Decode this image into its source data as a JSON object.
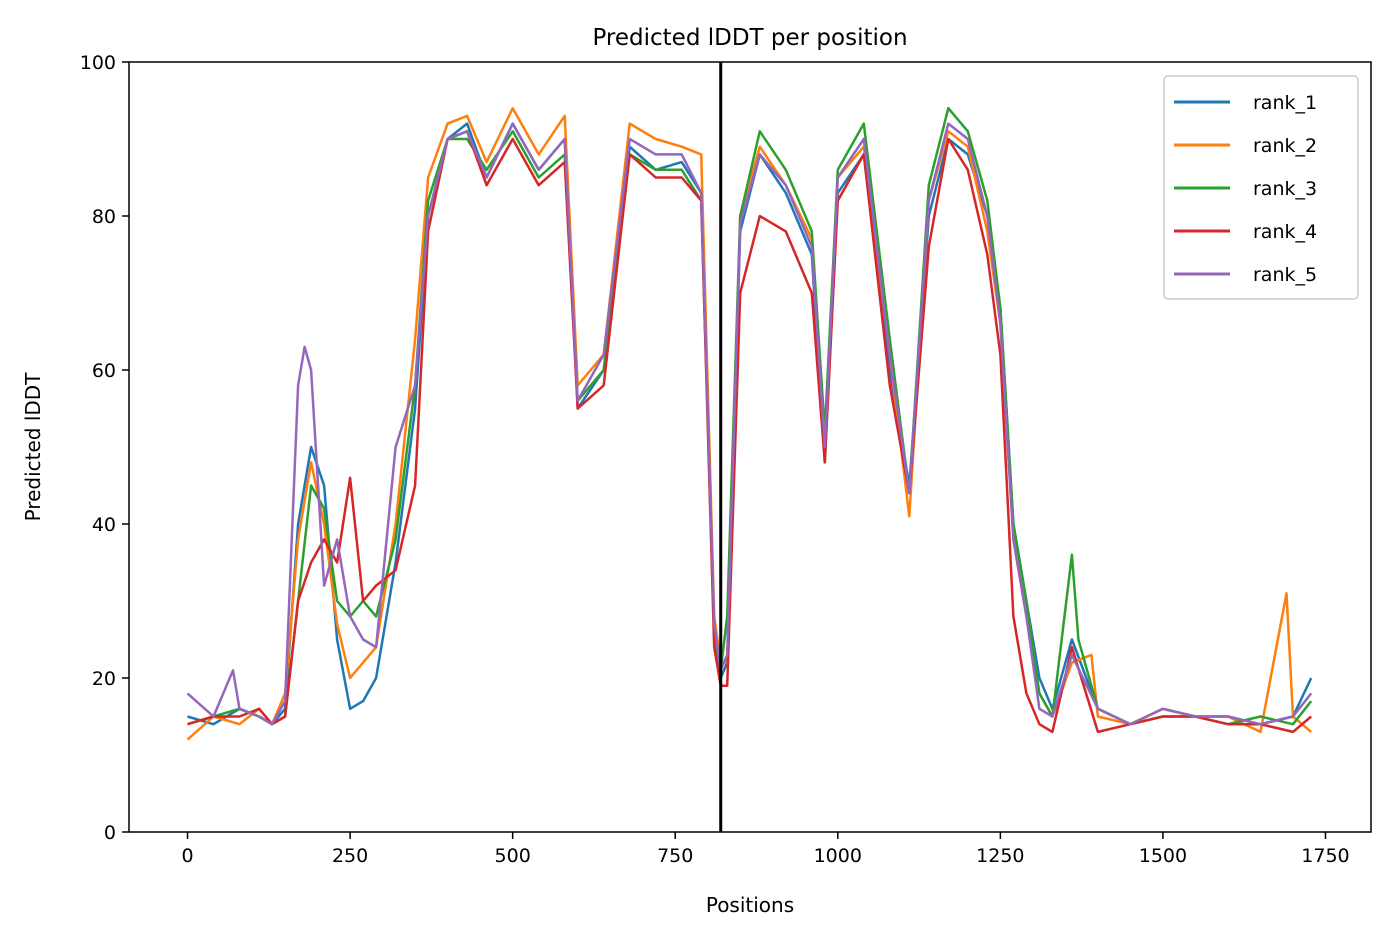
{
  "chart_data": {
    "type": "line",
    "title": "Predicted lDDT per position",
    "xlabel": "Positions",
    "ylabel": "Predicted lDDT",
    "xlim": [
      -90,
      1820
    ],
    "ylim": [
      0,
      100
    ],
    "xticks": [
      0,
      250,
      500,
      750,
      1000,
      1250,
      1500,
      1750
    ],
    "yticks": [
      0,
      20,
      40,
      60,
      80,
      100
    ],
    "grid": false,
    "legend_position": "top-right",
    "vline": {
      "x": 820,
      "color": "#000000"
    },
    "series": [
      {
        "name": "rank_1",
        "color": "#1f77b4",
        "x": [
          0,
          40,
          80,
          110,
          130,
          150,
          170,
          190,
          210,
          230,
          250,
          270,
          290,
          320,
          350,
          370,
          400,
          430,
          460,
          500,
          540,
          580,
          600,
          640,
          680,
          720,
          760,
          790,
          810,
          820,
          830,
          850,
          880,
          920,
          960,
          980,
          1000,
          1040,
          1080,
          1110,
          1140,
          1170,
          1200,
          1230,
          1250,
          1270,
          1290,
          1310,
          1330,
          1360,
          1400,
          1450,
          1500,
          1550,
          1600,
          1650,
          1700,
          1728
        ],
        "y": [
          15,
          14,
          16,
          15,
          14,
          16,
          40,
          50,
          45,
          25,
          16,
          17,
          20,
          35,
          55,
          80,
          90,
          92,
          85,
          92,
          86,
          90,
          55,
          60,
          89,
          86,
          87,
          83,
          25,
          20,
          22,
          78,
          88,
          83,
          75,
          48,
          83,
          88,
          60,
          45,
          80,
          90,
          88,
          80,
          68,
          40,
          30,
          20,
          16,
          25,
          16,
          14,
          16,
          15,
          15,
          14,
          15,
          20
        ]
      },
      {
        "name": "rank_2",
        "color": "#ff7f0e",
        "x": [
          0,
          40,
          80,
          110,
          130,
          150,
          170,
          190,
          210,
          230,
          250,
          270,
          290,
          320,
          350,
          370,
          400,
          430,
          460,
          500,
          540,
          580,
          600,
          640,
          680,
          720,
          760,
          790,
          810,
          820,
          830,
          850,
          880,
          920,
          960,
          980,
          1000,
          1040,
          1080,
          1110,
          1140,
          1170,
          1200,
          1230,
          1250,
          1270,
          1290,
          1310,
          1330,
          1360,
          1390,
          1400,
          1450,
          1500,
          1550,
          1600,
          1650,
          1690,
          1700,
          1728
        ],
        "y": [
          12,
          15,
          14,
          16,
          14,
          18,
          38,
          48,
          40,
          27,
          20,
          22,
          24,
          40,
          64,
          85,
          92,
          93,
          87,
          94,
          88,
          93,
          58,
          62,
          92,
          90,
          89,
          88,
          28,
          22,
          22,
          80,
          89,
          84,
          77,
          50,
          85,
          89,
          62,
          41,
          82,
          91,
          89,
          78,
          66,
          38,
          28,
          18,
          15,
          22,
          23,
          15,
          14,
          16,
          15,
          15,
          13,
          31,
          15,
          13
        ]
      },
      {
        "name": "rank_3",
        "color": "#2ca02c",
        "x": [
          0,
          40,
          80,
          110,
          130,
          150,
          170,
          190,
          210,
          230,
          250,
          270,
          290,
          320,
          350,
          370,
          400,
          430,
          460,
          500,
          540,
          580,
          600,
          640,
          680,
          720,
          760,
          790,
          810,
          820,
          830,
          850,
          880,
          920,
          960,
          980,
          1000,
          1040,
          1080,
          1110,
          1140,
          1170,
          1200,
          1230,
          1250,
          1270,
          1290,
          1310,
          1330,
          1360,
          1370,
          1400,
          1450,
          1500,
          1550,
          1600,
          1650,
          1700,
          1728
        ],
        "y": [
          14,
          15,
          16,
          15,
          14,
          15,
          30,
          45,
          42,
          30,
          28,
          30,
          28,
          38,
          58,
          82,
          90,
          90,
          86,
          91,
          85,
          88,
          56,
          60,
          88,
          86,
          86,
          82,
          26,
          21,
          28,
          80,
          91,
          86,
          78,
          52,
          86,
          92,
          64,
          44,
          84,
          94,
          91,
          82,
          68,
          40,
          30,
          18,
          15,
          36,
          25,
          16,
          14,
          15,
          15,
          14,
          15,
          14,
          17
        ]
      },
      {
        "name": "rank_4",
        "color": "#d62728",
        "x": [
          0,
          40,
          80,
          110,
          130,
          150,
          170,
          190,
          210,
          230,
          250,
          270,
          290,
          320,
          350,
          370,
          400,
          430,
          460,
          500,
          540,
          580,
          600,
          640,
          680,
          720,
          760,
          790,
          810,
          820,
          830,
          850,
          880,
          920,
          960,
          980,
          1000,
          1040,
          1080,
          1110,
          1140,
          1170,
          1200,
          1230,
          1250,
          1270,
          1290,
          1310,
          1330,
          1360,
          1400,
          1450,
          1500,
          1550,
          1600,
          1650,
          1700,
          1728
        ],
        "y": [
          14,
          15,
          15,
          16,
          14,
          15,
          30,
          35,
          38,
          35,
          46,
          30,
          32,
          34,
          45,
          78,
          90,
          91,
          84,
          90,
          84,
          87,
          55,
          58,
          88,
          85,
          85,
          82,
          24,
          19,
          19,
          70,
          80,
          78,
          70,
          48,
          82,
          88,
          58,
          44,
          76,
          90,
          86,
          75,
          62,
          28,
          18,
          14,
          13,
          24,
          13,
          14,
          15,
          15,
          14,
          14,
          13,
          15
        ]
      },
      {
        "name": "rank_5",
        "color": "#9467bd",
        "x": [
          0,
          40,
          70,
          80,
          110,
          130,
          150,
          170,
          180,
          190,
          210,
          230,
          250,
          270,
          290,
          320,
          350,
          370,
          400,
          430,
          460,
          500,
          540,
          580,
          600,
          640,
          680,
          720,
          760,
          790,
          810,
          820,
          830,
          850,
          880,
          920,
          960,
          980,
          1000,
          1040,
          1080,
          1110,
          1140,
          1170,
          1200,
          1230,
          1250,
          1270,
          1290,
          1310,
          1330,
          1360,
          1400,
          1450,
          1500,
          1550,
          1600,
          1650,
          1700,
          1728
        ],
        "y": [
          18,
          15,
          21,
          16,
          15,
          14,
          17,
          58,
          63,
          60,
          32,
          38,
          28,
          25,
          24,
          50,
          58,
          80,
          90,
          91,
          85,
          92,
          86,
          90,
          56,
          62,
          90,
          88,
          88,
          83,
          27,
          21,
          23,
          79,
          88,
          84,
          76,
          50,
          85,
          90,
          62,
          44,
          82,
          92,
          90,
          80,
          66,
          38,
          28,
          16,
          15,
          23,
          16,
          14,
          16,
          15,
          15,
          14,
          15,
          18
        ]
      }
    ]
  }
}
